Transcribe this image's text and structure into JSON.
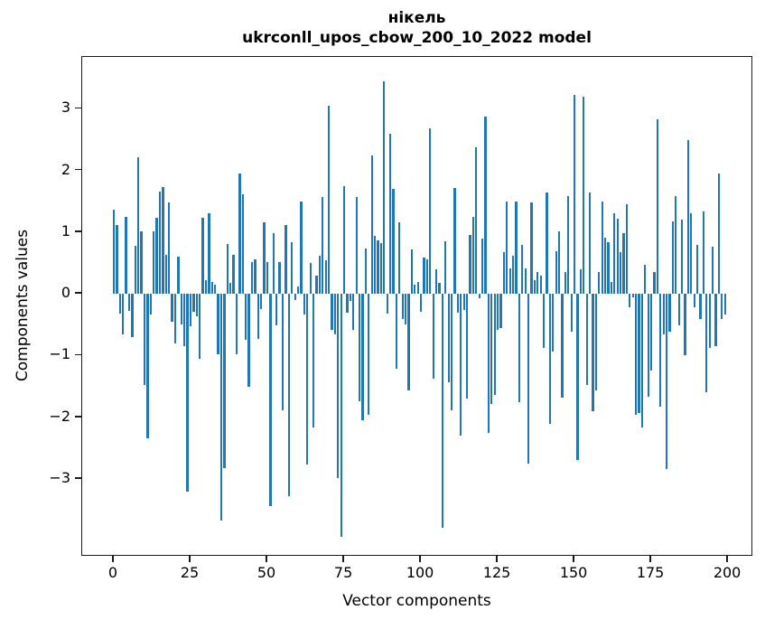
{
  "figure": {
    "title_line1": "нікель",
    "title_line2": "ukrconll_upos_cbow_200_10_2022 model"
  },
  "chart_data": {
    "type": "bar",
    "title": "нікель",
    "subtitle": "ukrconll_upos_cbow_200_10_2022 model",
    "xlabel": "Vector components",
    "ylabel": "Components values",
    "x_tick_labels": [
      0,
      25,
      50,
      75,
      100,
      125,
      150,
      175,
      200
    ],
    "y_tick_labels": [
      3,
      2,
      1,
      0,
      -1,
      -2,
      -3
    ],
    "xlim": [
      -10.3,
      208.2
    ],
    "ylim": [
      -4.26,
      3.84
    ],
    "grid": false,
    "legend": "none",
    "bar_color": "#1f77b4",
    "n_components": 200,
    "values": [
      1.37,
      1.12,
      -0.32,
      -0.65,
      1.25,
      -0.28,
      -0.7,
      0.78,
      2.21,
      1.02,
      -1.48,
      -2.34,
      -0.34,
      1.02,
      1.23,
      1.66,
      1.73,
      0.63,
      1.48,
      -0.45,
      -0.81,
      0.6,
      -0.5,
      -0.85,
      -3.21,
      -0.53,
      -0.29,
      -0.36,
      -1.05,
      1.23,
      0.22,
      1.3,
      0.2,
      0.15,
      -0.98,
      -3.67,
      -2.82,
      0.81,
      0.18,
      0.64,
      -0.98,
      1.95,
      1.62,
      -0.75,
      -1.5,
      0.52,
      0.56,
      -0.73,
      -0.24,
      1.16,
      0.52,
      -3.44,
      0.98,
      -0.51,
      0.52,
      -1.89,
      1.11,
      -3.28,
      0.84,
      -0.1,
      0.12,
      1.5,
      -0.34,
      -2.77,
      0.5,
      -2.17,
      0.3,
      0.62,
      1.57,
      0.55,
      3.05,
      -0.58,
      -0.66,
      -2.99,
      -3.94,
      1.75,
      -0.31,
      -0.12,
      -0.58,
      1.57,
      -1.74,
      -2.05,
      0.74,
      -1.96,
      2.25,
      0.94,
      0.86,
      0.82,
      3.45,
      -0.32,
      2.59,
      1.7,
      -1.22,
      1.16,
      -0.41,
      -0.49,
      -1.56,
      0.72,
      0.15,
      0.2,
      -0.29,
      0.59,
      0.56,
      2.69,
      -1.37,
      0.4,
      0.18,
      -3.79,
      0.85,
      -1.44,
      -1.89,
      1.72,
      -0.31,
      -2.3,
      -0.26,
      -1.69,
      0.96,
      1.25,
      2.38,
      -0.07,
      0.89,
      2.87,
      -2.26,
      -1.78,
      -1.64,
      -0.58,
      -0.56,
      0.67,
      1.5,
      0.42,
      0.62,
      1.49,
      -1.76,
      0.79,
      0.42,
      -2.75,
      1.48,
      0.23,
      0.36,
      0.3,
      -0.88,
      1.65,
      -2.11,
      -0.93,
      0.69,
      1.01,
      -1.68,
      0.35,
      1.59,
      -0.61,
      3.23,
      -2.7,
      0.4,
      3.19,
      -1.48,
      1.65,
      -1.9,
      -1.56,
      0.35,
      1.49,
      0.91,
      0.84,
      0.2,
      1.31,
      1.22,
      0.67,
      0.98,
      1.45,
      -0.22,
      -0.05,
      -1.96,
      -1.93,
      -2.16,
      0.47,
      -1.67,
      -1.24,
      0.36,
      2.83,
      -1.83,
      -0.66,
      -2.84,
      -0.61,
      1.18,
      1.59,
      -0.51,
      1.21,
      -1.0,
      2.5,
      1.31,
      -0.22,
      0.79,
      -0.41,
      1.34,
      -1.59,
      -0.88,
      0.77,
      -0.85,
      1.95,
      -0.41,
      -0.34
    ]
  }
}
